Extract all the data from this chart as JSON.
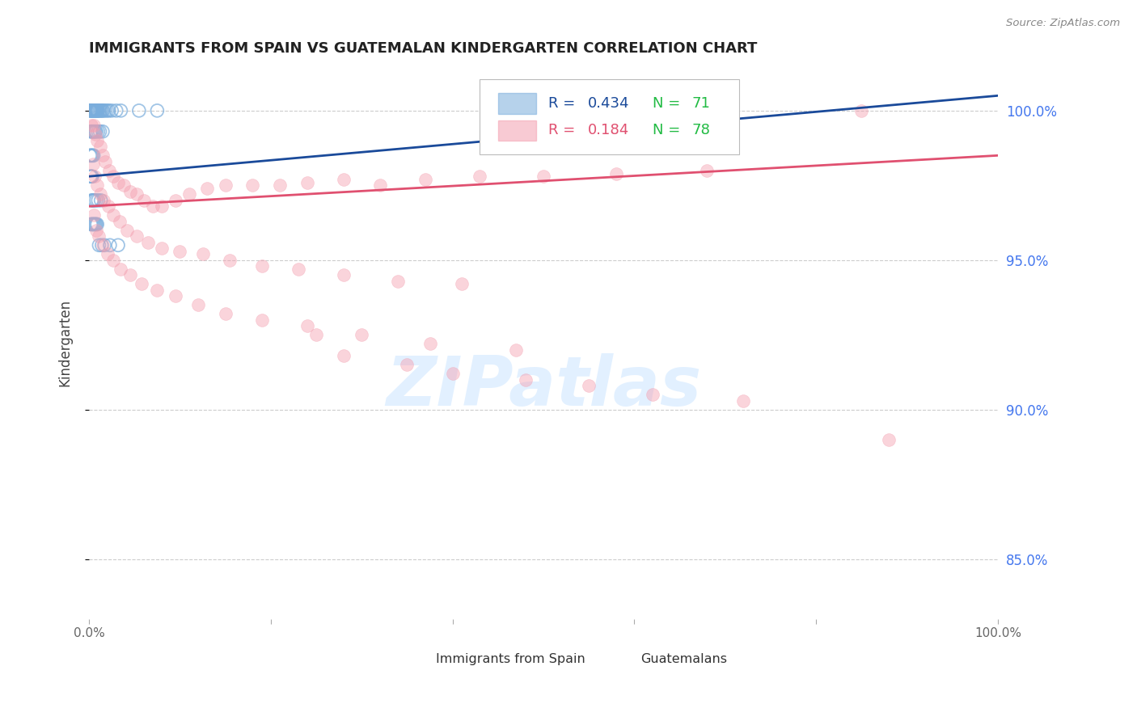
{
  "title": "IMMIGRANTS FROM SPAIN VS GUATEMALAN KINDERGARTEN CORRELATION CHART",
  "source": "Source: ZipAtlas.com",
  "ylabel": "Kindergarten",
  "ytick_labels": [
    "85.0%",
    "90.0%",
    "95.0%",
    "100.0%"
  ],
  "ytick_vals": [
    85.0,
    90.0,
    95.0,
    100.0
  ],
  "xlim": [
    0.0,
    100.0
  ],
  "ylim": [
    83.0,
    101.5
  ],
  "blue_color": "#7AADDC",
  "pink_color": "#F4A0B0",
  "blue_line_color": "#1A4A9A",
  "pink_line_color": "#E05070",
  "right_axis_color": "#4477EE",
  "grid_color": "#CCCCCC",
  "legend_R1": "0.434",
  "legend_N1": "71",
  "legend_R2": "0.184",
  "legend_N2": "78",
  "watermark": "ZIPatlas",
  "watermark_color": "#DDEEFF",
  "blue_scatter_x": [
    0.1,
    0.15,
    0.2,
    0.25,
    0.3,
    0.35,
    0.4,
    0.45,
    0.5,
    0.55,
    0.6,
    0.65,
    0.7,
    0.75,
    0.8,
    0.85,
    0.9,
    0.95,
    1.0,
    1.1,
    1.2,
    1.3,
    1.4,
    1.5,
    1.6,
    1.8,
    2.0,
    2.2,
    2.5,
    3.0,
    3.5,
    0.2,
    0.3,
    0.4,
    0.5,
    0.6,
    0.7,
    0.8,
    1.0,
    1.2,
    1.5,
    0.1,
    0.2,
    0.3,
    0.4,
    0.5,
    0.15,
    0.25,
    0.35,
    5.5,
    7.5,
    0.3,
    0.4,
    0.5,
    0.6,
    0.8,
    1.0,
    1.3,
    0.2,
    0.3,
    0.4,
    0.5,
    0.6,
    0.7,
    0.8,
    0.9,
    1.1,
    1.4,
    1.7,
    2.3,
    3.2
  ],
  "blue_scatter_y": [
    100.0,
    100.0,
    100.0,
    100.0,
    100.0,
    100.0,
    100.0,
    100.0,
    100.0,
    100.0,
    100.0,
    100.0,
    100.0,
    100.0,
    100.0,
    100.0,
    100.0,
    100.0,
    100.0,
    100.0,
    100.0,
    100.0,
    100.0,
    100.0,
    100.0,
    100.0,
    100.0,
    100.0,
    100.0,
    100.0,
    100.0,
    99.3,
    99.3,
    99.3,
    99.3,
    99.3,
    99.3,
    99.3,
    99.3,
    99.3,
    99.3,
    98.5,
    98.5,
    98.5,
    98.5,
    98.5,
    97.8,
    97.8,
    97.8,
    100.0,
    100.0,
    97.0,
    97.0,
    97.0,
    97.0,
    97.0,
    97.0,
    97.0,
    96.2,
    96.2,
    96.2,
    96.2,
    96.2,
    96.2,
    96.2,
    96.2,
    95.5,
    95.5,
    95.5,
    95.5,
    95.5
  ],
  "pink_scatter_x": [
    0.3,
    0.5,
    0.7,
    0.9,
    1.2,
    1.5,
    1.8,
    2.2,
    2.7,
    3.2,
    3.8,
    4.5,
    5.2,
    6.0,
    7.0,
    8.0,
    9.5,
    11.0,
    13.0,
    15.0,
    18.0,
    21.0,
    24.0,
    28.0,
    32.0,
    37.0,
    43.0,
    50.0,
    58.0,
    68.0,
    85.0,
    0.4,
    0.6,
    0.9,
    1.2,
    1.6,
    2.1,
    2.7,
    3.4,
    4.2,
    5.2,
    6.5,
    8.0,
    10.0,
    12.5,
    15.5,
    19.0,
    23.0,
    28.0,
    34.0,
    41.0,
    0.5,
    0.8,
    1.1,
    1.5,
    2.0,
    2.7,
    3.5,
    4.5,
    5.8,
    7.5,
    9.5,
    12.0,
    15.0,
    19.0,
    24.0,
    30.0,
    37.5,
    47.0,
    25.0,
    35.0,
    48.0,
    62.0,
    28.0,
    40.0,
    55.0,
    72.0,
    88.0
  ],
  "pink_scatter_y": [
    99.5,
    99.5,
    99.2,
    99.0,
    98.8,
    98.5,
    98.3,
    98.0,
    97.8,
    97.6,
    97.5,
    97.3,
    97.2,
    97.0,
    96.8,
    96.8,
    97.0,
    97.2,
    97.4,
    97.5,
    97.5,
    97.5,
    97.6,
    97.7,
    97.5,
    97.7,
    97.8,
    97.8,
    97.9,
    98.0,
    100.0,
    98.2,
    97.8,
    97.5,
    97.2,
    97.0,
    96.8,
    96.5,
    96.3,
    96.0,
    95.8,
    95.6,
    95.4,
    95.3,
    95.2,
    95.0,
    94.8,
    94.7,
    94.5,
    94.3,
    94.2,
    96.5,
    96.0,
    95.8,
    95.5,
    95.2,
    95.0,
    94.7,
    94.5,
    94.2,
    94.0,
    93.8,
    93.5,
    93.2,
    93.0,
    92.8,
    92.5,
    92.2,
    92.0,
    92.5,
    91.5,
    91.0,
    90.5,
    91.8,
    91.2,
    90.8,
    90.3,
    89.0
  ],
  "blue_trendline_x": [
    0.0,
    100.0
  ],
  "blue_trendline_y_start": 97.8,
  "blue_trendline_y_end": 100.5,
  "pink_trendline_y_start": 96.8,
  "pink_trendline_y_end": 98.5
}
